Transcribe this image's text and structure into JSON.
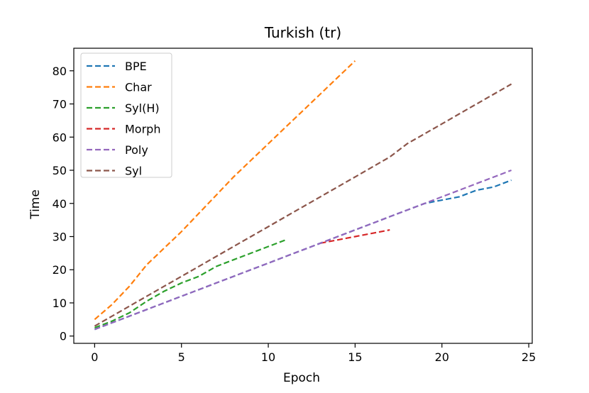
{
  "chart_data": {
    "type": "line",
    "title": "Turkish (tr)",
    "xlabel": "Epoch",
    "ylabel": "Time",
    "xlim": [
      -1.2,
      25.2
    ],
    "ylim": [
      -2.2,
      86.8
    ],
    "xticks": [
      0,
      5,
      10,
      15,
      20,
      25
    ],
    "yticks": [
      0,
      10,
      20,
      30,
      40,
      50,
      60,
      70,
      80
    ],
    "grid": false,
    "legend_position": "top-left",
    "line_style": "dashed",
    "series": [
      {
        "name": "BPE",
        "color": "#1f77b4",
        "x": [
          0,
          1,
          2,
          3,
          4,
          5,
          6,
          7,
          8,
          9,
          10,
          11,
          12,
          13,
          14,
          15,
          16,
          17,
          18,
          19,
          20,
          21,
          22,
          23,
          24
        ],
        "y": [
          2,
          4,
          6,
          8,
          10,
          12,
          14,
          16,
          18,
          20,
          22,
          24,
          26,
          28,
          30,
          32,
          34,
          36,
          38,
          40,
          41,
          42,
          44,
          45,
          47
        ]
      },
      {
        "name": "Char",
        "color": "#ff7f0e",
        "x": [
          0,
          1,
          2,
          3,
          4,
          5,
          6,
          7,
          8,
          9,
          10,
          11,
          12,
          13,
          14,
          15
        ],
        "y": [
          5,
          9.5,
          15,
          21.5,
          26.5,
          31.5,
          37,
          42.5,
          48,
          53,
          58,
          63,
          68,
          73,
          78,
          83
        ]
      },
      {
        "name": "Syl(H)",
        "color": "#2ca02c",
        "x": [
          0,
          1,
          2,
          3,
          4,
          5,
          6,
          7,
          8,
          9,
          10,
          11
        ],
        "y": [
          2.5,
          4.5,
          7,
          10.5,
          13.5,
          16,
          18,
          21,
          23,
          25,
          27,
          29
        ]
      },
      {
        "name": "Morph",
        "color": "#d62728",
        "x": [
          13,
          14,
          15,
          16,
          17
        ],
        "y": [
          28,
          29,
          30,
          31,
          32
        ]
      },
      {
        "name": "Poly",
        "color": "#9467bd",
        "x": [
          0,
          1,
          2,
          3,
          4,
          5,
          6,
          7,
          8,
          9,
          10,
          11,
          12,
          13,
          14,
          15,
          16,
          17,
          18,
          19,
          20,
          21,
          22,
          23,
          24
        ],
        "y": [
          2,
          4,
          6,
          8,
          10,
          12,
          14,
          16,
          18,
          20,
          22,
          24,
          26,
          28,
          30,
          32,
          34,
          36,
          38,
          40,
          42,
          44,
          46,
          48,
          50
        ]
      },
      {
        "name": "Syl",
        "color": "#8c564b",
        "x": [
          0,
          1,
          2,
          3,
          4,
          5,
          6,
          7,
          8,
          9,
          10,
          11,
          12,
          13,
          14,
          15,
          16,
          17,
          18,
          19,
          20,
          21,
          22,
          23,
          24
        ],
        "y": [
          3,
          6,
          9,
          12,
          15,
          18,
          21,
          24,
          27,
          30,
          33,
          36,
          39,
          42,
          45,
          48,
          51,
          54,
          58,
          61,
          64,
          67,
          70,
          73,
          76
        ]
      }
    ]
  }
}
